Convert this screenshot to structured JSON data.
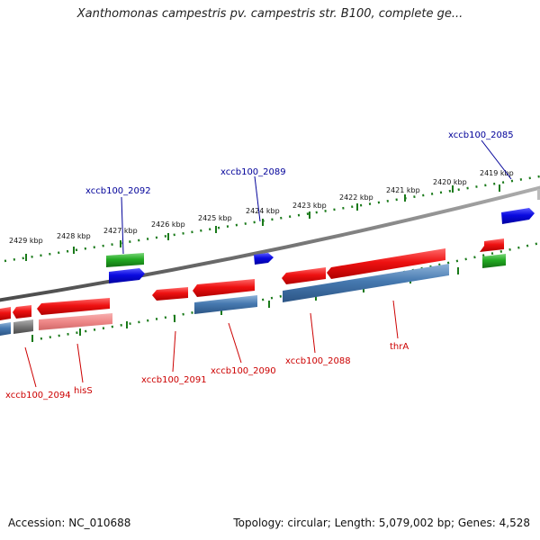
{
  "title": "Xanthomonas campestris pv. campestris str. B100, complete ge...",
  "footer": {
    "accession": "Accession: NC_010688",
    "topology": "Topology: circular; Length: 5,079,002 bp; Genes: 4,528"
  },
  "colors": {
    "backbone": "#777777",
    "forward_cds": "#ee1111",
    "reverse_cds": "#4679b0",
    "forward_rna": "#0a0ae0",
    "gene_green": "#22aa22",
    "tick": "#1a7a1a",
    "label_forward": "#000099",
    "label_reverse": "#cc0000"
  },
  "ticks": [
    "2429 kbp",
    "2428 kbp",
    "2427 kbp",
    "2426 kbp",
    "2425 kbp",
    "2424 kbp",
    "2423 kbp",
    "2422 kbp",
    "2421 kbp",
    "2420 kbp",
    "2419 kbp"
  ],
  "gene_labels": {
    "xccb100_2092": "xccb100_2092",
    "xccb100_2089": "xccb100_2089",
    "xccb100_2085": "xccb100_2085",
    "xccb100_2094": "xccb100_2094",
    "hisS": "hisS",
    "xccb100_2091": "xccb100_2091",
    "xccb100_2090": "xccb100_2090",
    "xccb100_2088": "xccb100_2088",
    "thrA": "thrA"
  }
}
